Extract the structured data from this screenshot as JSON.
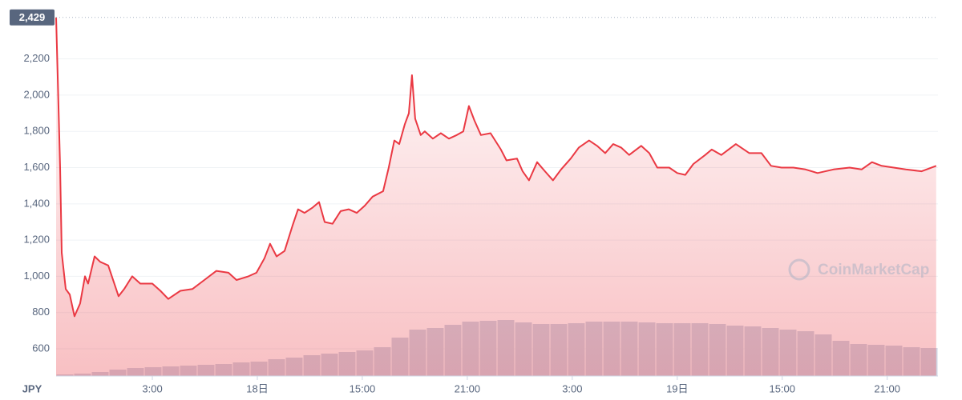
{
  "chart_data": {
    "type": "line",
    "currency": "JPY",
    "watermark": "CoinMarketCap",
    "max_label": "2,429",
    "max_value": 2429,
    "color": "#ea3943",
    "grid": true,
    "xlim": [
      0,
      50.4
    ],
    "xticks": [
      {
        "value": 5.5,
        "label": "3:00"
      },
      {
        "value": 11.5,
        "label": "18日"
      },
      {
        "value": 17.5,
        "label": "15:00"
      },
      {
        "value": 23.5,
        "label": "21:00"
      },
      {
        "value": 29.5,
        "label": "3:00"
      },
      {
        "value": 35.5,
        "label": "19日"
      },
      {
        "value": 41.5,
        "label": "15:00"
      },
      {
        "value": 47.5,
        "label": "21:00"
      }
    ],
    "ylim": [
      450,
      2450
    ],
    "yticks": [
      600,
      800,
      {
        "value": 1000,
        "label": "1,000"
      },
      {
        "value": 1200,
        "label": "1,200"
      },
      {
        "value": 1400,
        "label": "1,400"
      },
      {
        "value": 1600,
        "label": "1,600"
      },
      {
        "value": 1800,
        "label": "1,800"
      },
      {
        "value": 2000,
        "label": "2,000"
      },
      {
        "value": 2200,
        "label": "2,200"
      }
    ],
    "x": [
      0,
      0.09,
      0.23,
      0.32,
      0.55,
      0.78,
      1.05,
      1.37,
      1.65,
      1.83,
      2.2,
      2.52,
      2.98,
      3.57,
      3.89,
      4.35,
      4.81,
      5.5,
      5.96,
      6.41,
      7.1,
      7.79,
      8.47,
      9.16,
      9.85,
      10.31,
      10.99,
      11.45,
      11.91,
      12.23,
      12.6,
      13.06,
      13.51,
      13.83,
      14.2,
      14.66,
      15.03,
      15.35,
      15.8,
      16.26,
      16.72,
      17.18,
      17.64,
      18.09,
      18.69,
      19.01,
      19.33,
      19.61,
      19.93,
      20.16,
      20.34,
      20.52,
      20.84,
      21.07,
      21.53,
      21.99,
      22.45,
      22.9,
      23.27,
      23.59,
      23.91,
      24.28,
      24.83,
      25.42,
      25.74,
      26.34,
      26.66,
      27.03,
      27.49,
      27.94,
      28.4,
      28.86,
      29.41,
      29.87,
      30.46,
      30.92,
      31.38,
      31.84,
      32.3,
      32.75,
      33.44,
      33.9,
      34.36,
      35.04,
      35.5,
      35.96,
      36.42,
      37.1,
      37.47,
      38.02,
      38.85,
      39.62,
      40.31,
      40.86,
      41.46,
      42.14,
      42.83,
      43.52,
      44.43,
      45.35,
      46.04,
      46.63,
      47.18,
      47.87,
      48.56,
      49.47,
      50.3
    ],
    "values": [
      2429,
      2100,
      1600,
      1130,
      930,
      900,
      780,
      850,
      1000,
      960,
      1110,
      1080,
      1060,
      890,
      930,
      1000,
      960,
      960,
      920,
      875,
      920,
      930,
      980,
      1030,
      1020,
      980,
      1000,
      1020,
      1100,
      1180,
      1110,
      1140,
      1280,
      1370,
      1350,
      1380,
      1410,
      1300,
      1290,
      1360,
      1370,
      1350,
      1390,
      1440,
      1470,
      1600,
      1750,
      1730,
      1840,
      1900,
      2110,
      1870,
      1780,
      1800,
      1760,
      1790,
      1760,
      1780,
      1800,
      1940,
      1860,
      1780,
      1790,
      1700,
      1640,
      1650,
      1580,
      1530,
      1630,
      1580,
      1530,
      1590,
      1650,
      1710,
      1750,
      1720,
      1680,
      1730,
      1710,
      1670,
      1720,
      1680,
      1600,
      1600,
      1570,
      1560,
      1620,
      1670,
      1700,
      1670,
      1730,
      1680,
      1680,
      1610,
      1600,
      1600,
      1590,
      1570,
      1590,
      1600,
      1590,
      1630,
      1610,
      1600,
      1590,
      1580,
      1610
    ],
    "volume": {
      "color": "#cfd6e4",
      "vlim": [
        0,
        100
      ],
      "values": [
        2,
        3,
        5,
        8,
        10,
        11,
        12,
        13,
        14,
        15,
        17,
        18,
        21,
        23,
        26,
        28,
        30,
        32,
        36,
        48,
        58,
        60,
        64,
        68,
        69,
        70,
        67,
        65,
        65,
        66,
        68,
        68,
        68,
        67,
        66,
        66,
        66,
        65,
        63,
        62,
        60,
        58,
        56,
        52,
        44,
        40,
        39,
        38,
        36,
        35
      ]
    }
  }
}
